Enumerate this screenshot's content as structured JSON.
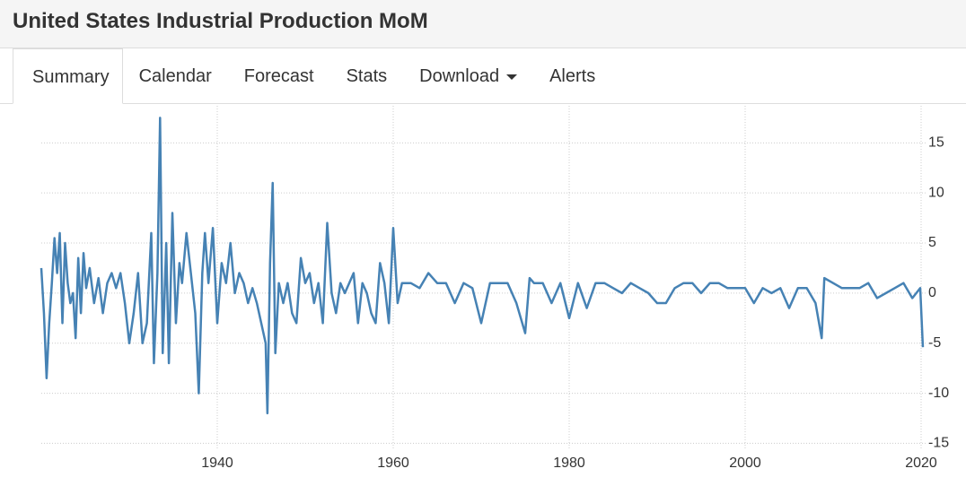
{
  "header": {
    "title": "United States Industrial Production MoM"
  },
  "tabs": [
    "Summary",
    "Calendar",
    "Forecast",
    "Stats",
    "Download",
    "Alerts"
  ],
  "chart_data": {
    "type": "line",
    "color": "#4682b4",
    "grid": true,
    "xlim": [
      1920,
      2020.5
    ],
    "xticks": [
      1940,
      1960,
      1980,
      2000,
      2020
    ],
    "ylim": [
      -15.5,
      18.7
    ],
    "yticks": [
      15,
      10,
      5,
      0,
      -5,
      -10,
      -15
    ],
    "x": [
      1920.0,
      1920.3,
      1920.6,
      1920.9,
      1921.2,
      1921.5,
      1921.8,
      1922.1,
      1922.4,
      1922.7,
      1923.0,
      1923.3,
      1923.6,
      1923.9,
      1924.2,
      1924.5,
      1924.8,
      1925.1,
      1925.5,
      1926.0,
      1926.5,
      1927.0,
      1927.5,
      1928.0,
      1928.5,
      1929.0,
      1929.5,
      1930.0,
      1930.5,
      1931.0,
      1931.5,
      1932.0,
      1932.5,
      1932.8,
      1933.2,
      1933.5,
      1933.8,
      1934.2,
      1934.5,
      1934.9,
      1935.3,
      1935.7,
      1936.0,
      1936.5,
      1937.0,
      1937.5,
      1937.9,
      1938.3,
      1938.6,
      1939.0,
      1939.5,
      1940.0,
      1940.5,
      1941.0,
      1941.5,
      1942.0,
      1942.5,
      1943.0,
      1943.5,
      1944.0,
      1944.5,
      1945.0,
      1945.5,
      1945.7,
      1946.0,
      1946.3,
      1946.6,
      1947.0,
      1947.5,
      1948.0,
      1948.5,
      1949.0,
      1949.5,
      1950.0,
      1950.5,
      1951.0,
      1951.5,
      1952.0,
      1952.5,
      1953.0,
      1953.5,
      1954.0,
      1954.5,
      1955.0,
      1955.5,
      1956.0,
      1956.5,
      1957.0,
      1957.5,
      1958.0,
      1958.5,
      1959.0,
      1959.5,
      1960.0,
      1960.5,
      1961,
      1962,
      1963,
      1964,
      1965,
      1966,
      1967,
      1968,
      1969,
      1970,
      1971,
      1972,
      1973,
      1974,
      1975,
      1975.5,
      1976,
      1977,
      1978,
      1979,
      1980,
      1981,
      1982,
      1983,
      1984,
      1985,
      1986,
      1987,
      1988,
      1989,
      1990,
      1991,
      1992,
      1993,
      1994,
      1995,
      1996,
      1997,
      1998,
      1999,
      2000,
      2001,
      2002,
      2003,
      2004,
      2005,
      2006,
      2007,
      2008,
      2008.7,
      2009,
      2010,
      2011,
      2012,
      2013,
      2014,
      2015,
      2016,
      2017,
      2018,
      2019,
      2019.9,
      2020.2
    ],
    "values": [
      2.5,
      -2,
      -8.5,
      -3,
      1,
      5.5,
      2,
      6,
      -3,
      5,
      1,
      -1,
      0,
      -4.5,
      3.5,
      -2,
      4,
      0.5,
      2.5,
      -1,
      1.5,
      -2,
      1,
      2,
      0.5,
      2,
      -1,
      -5,
      -2,
      2,
      -5,
      -3,
      6,
      -7,
      2,
      17.5,
      -6,
      5,
      -7,
      8,
      -3,
      3,
      1,
      6,
      2,
      -2,
      -10,
      2,
      6,
      1,
      6.5,
      -3,
      3,
      1,
      5,
      0,
      2,
      1,
      -1,
      0.5,
      -1,
      -3,
      -5,
      -12,
      3,
      11,
      -6,
      1,
      -1,
      1,
      -2,
      -3,
      3.5,
      1,
      2,
      -1,
      1,
      -3,
      7,
      0,
      -2,
      1,
      0,
      1,
      2,
      -3,
      1,
      0,
      -2,
      -3,
      3,
      1,
      -3,
      6.5,
      -1,
      1,
      1,
      0.5,
      2,
      1,
      1,
      -1,
      1,
      0.5,
      -3,
      1,
      1,
      1,
      -1,
      -4,
      1.5,
      1,
      1,
      -1,
      1,
      -2.5,
      1,
      -1.5,
      1,
      1,
      0.5,
      0,
      1,
      0.5,
      0,
      -1,
      -1,
      0.5,
      1,
      1,
      0,
      1,
      1,
      0.5,
      0.5,
      0.5,
      -1,
      0.5,
      0,
      0.5,
      -1.5,
      0.5,
      0.5,
      -1,
      -4.5,
      1.5,
      1,
      0.5,
      0.5,
      0.5,
      1,
      -0.5,
      0,
      0.5,
      1,
      -0.5,
      0.5,
      -5.4
    ]
  }
}
